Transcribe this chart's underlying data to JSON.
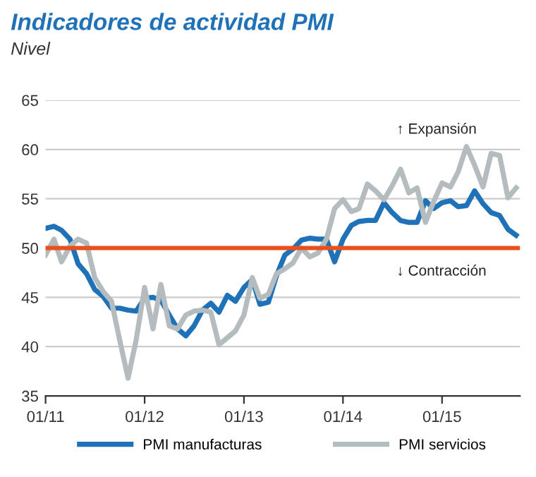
{
  "chart_data": {
    "type": "line",
    "title": "Indicadores de actividad PMI",
    "subtitle": "Nivel",
    "x": [
      "2011-01",
      "2011-02",
      "2011-03",
      "2011-04",
      "2011-05",
      "2011-06",
      "2011-07",
      "2011-08",
      "2011-09",
      "2011-10",
      "2011-11",
      "2011-12",
      "2012-01",
      "2012-02",
      "2012-03",
      "2012-04",
      "2012-05",
      "2012-06",
      "2012-07",
      "2012-08",
      "2012-09",
      "2012-10",
      "2012-11",
      "2012-12",
      "2013-01",
      "2013-02",
      "2013-03",
      "2013-04",
      "2013-05",
      "2013-06",
      "2013-07",
      "2013-08",
      "2013-09",
      "2013-10",
      "2013-11",
      "2013-12",
      "2014-01",
      "2014-02",
      "2014-03",
      "2014-04",
      "2014-05",
      "2014-06",
      "2014-07",
      "2014-08",
      "2014-09",
      "2014-10",
      "2014-11",
      "2014-12",
      "2015-01",
      "2015-02",
      "2015-03",
      "2015-04",
      "2015-05",
      "2015-06",
      "2015-07",
      "2015-08",
      "2015-09",
      "2015-10"
    ],
    "series": [
      {
        "name": "PMI manufacturas",
        "color": "#1f72b8",
        "values": [
          52.0,
          52.2,
          51.8,
          50.9,
          48.4,
          47.4,
          45.8,
          45.1,
          43.9,
          43.9,
          43.7,
          43.6,
          44.9,
          45.0,
          44.7,
          43.2,
          41.8,
          41.1,
          42.1,
          43.7,
          44.4,
          43.5,
          45.2,
          44.6,
          46.0,
          46.8,
          44.3,
          44.5,
          47.2,
          49.3,
          49.9,
          50.8,
          51.0,
          50.9,
          50.9,
          48.6,
          50.9,
          52.3,
          52.7,
          52.8,
          52.8,
          54.6,
          53.6,
          52.8,
          52.6,
          52.6,
          54.8,
          54.0,
          54.6,
          54.8,
          54.2,
          54.3,
          55.8,
          54.5,
          53.6,
          53.3,
          51.9,
          51.3
        ]
      },
      {
        "name": "PMI servicios",
        "color": "#b4bcc0",
        "values": [
          49.3,
          50.9,
          48.6,
          50.2,
          50.9,
          50.5,
          47.0,
          45.6,
          44.6,
          40.7,
          36.8,
          40.7,
          46.0,
          41.8,
          46.3,
          42.1,
          41.8,
          43.2,
          43.6,
          43.7,
          43.5,
          40.2,
          40.9,
          41.6,
          43.2,
          47.0,
          44.9,
          45.3,
          47.4,
          47.9,
          48.5,
          50.0,
          49.1,
          49.5,
          50.9,
          54.0,
          54.9,
          53.7,
          54.0,
          56.5,
          55.8,
          54.9,
          56.3,
          58.0,
          55.6,
          56.1,
          52.6,
          54.7,
          56.6,
          56.2,
          57.7,
          60.3,
          58.4,
          56.2,
          59.6,
          59.4,
          55.1,
          56.1
        ]
      }
    ],
    "xlim": [
      "2011-01",
      "2015-10-15"
    ],
    "xticks": [
      {
        "value": "2011-01",
        "label": "01/11"
      },
      {
        "value": "2012-01",
        "label": "01/12"
      },
      {
        "value": "2013-01",
        "label": "01/13"
      },
      {
        "value": "2014-01",
        "label": "01/14"
      },
      {
        "value": "2015-01",
        "label": "01/15"
      }
    ],
    "ylim": [
      35,
      65
    ],
    "yticks": [
      35,
      40,
      45,
      50,
      55,
      60,
      65
    ],
    "ref_lines": [
      {
        "axis": "y",
        "value": 50,
        "color": "#e8501e"
      }
    ],
    "annotations": [
      "↑ Expansión",
      "↓ Contracción"
    ],
    "grid": "y",
    "legend": "bottom",
    "line_style": "solid",
    "marker": "none"
  }
}
